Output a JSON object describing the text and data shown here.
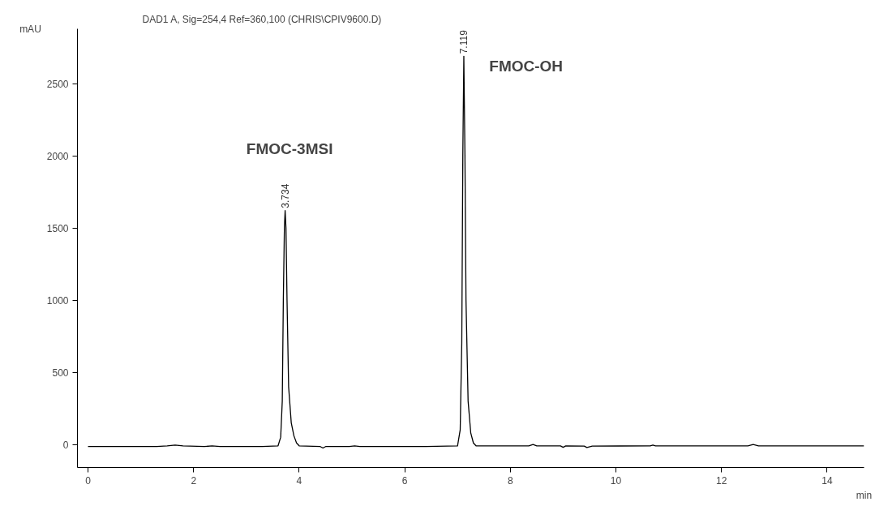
{
  "chart_data": {
    "type": "line",
    "title": "DAD1 A, Sig=254,4 Ref=360,100 (CHRIS\\CPIV9600.D)",
    "xlabel": "min",
    "ylabel": "mAU",
    "xlim": [
      -0.2,
      14.7
    ],
    "ylim": [
      -160,
      2880
    ],
    "xticks": [
      0,
      2,
      4,
      6,
      8,
      10,
      12,
      14
    ],
    "yticks": [
      0,
      500,
      1000,
      1500,
      2000,
      2500
    ],
    "grid": false,
    "marker": "none",
    "line_style": "solid",
    "series": [
      {
        "color": "#000000",
        "x": [
          0,
          1.3,
          1.5,
          1.65,
          1.8,
          2.2,
          2.35,
          2.5,
          3.3,
          3.6,
          3.65,
          3.68,
          3.7,
          3.72,
          3.734,
          3.75,
          3.77,
          3.8,
          3.85,
          3.9,
          3.95,
          4.0,
          4.4,
          4.45,
          4.5,
          4.95,
          5.05,
          5.15,
          6.4,
          7.0,
          7.05,
          7.08,
          7.1,
          7.119,
          7.14,
          7.16,
          7.2,
          7.25,
          7.3,
          7.35,
          8.35,
          8.43,
          8.5,
          8.95,
          9.0,
          9.05,
          9.4,
          9.45,
          9.55,
          10.65,
          10.7,
          10.75,
          12.5,
          12.6,
          12.7,
          14.7
        ],
        "values": [
          -15,
          -15,
          -10,
          -5,
          -10,
          -15,
          -10,
          -15,
          -15,
          -10,
          50,
          300,
          1000,
          1500,
          1620,
          1500,
          1000,
          400,
          150,
          60,
          10,
          -10,
          -15,
          -25,
          -15,
          -15,
          -10,
          -15,
          -15,
          -10,
          100,
          700,
          2000,
          2690,
          2000,
          1000,
          300,
          80,
          10,
          -10,
          -10,
          0,
          -10,
          -10,
          -20,
          -10,
          -12,
          -22,
          -12,
          -10,
          -5,
          -10,
          -10,
          0,
          -10,
          -10
        ]
      }
    ],
    "annotations": [
      {
        "text": "3.734",
        "x": 3.734,
        "y": 1620
      },
      {
        "text": "7.119",
        "x": 7.119,
        "y": 2690
      },
      "FMOC-3MSI",
      "FMOC-OH"
    ]
  }
}
